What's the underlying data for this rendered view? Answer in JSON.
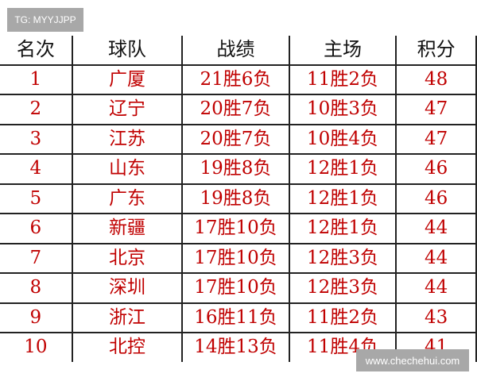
{
  "watermarks": {
    "top_left": "TG: MYYJJPP",
    "bottom_right": "www.chechehui.com"
  },
  "table": {
    "headers": [
      "名次",
      "球队",
      "战绩",
      "主场",
      "积分"
    ],
    "rows": [
      [
        "1",
        "广厦",
        "21胜6负",
        "11胜2负",
        "48"
      ],
      [
        "2",
        "辽宁",
        "20胜7负",
        "10胜3负",
        "47"
      ],
      [
        "3",
        "江苏",
        "20胜7负",
        "10胜4负",
        "47"
      ],
      [
        "4",
        "山东",
        "19胜8负",
        "12胜1负",
        "46"
      ],
      [
        "5",
        "广东",
        "19胜8负",
        "12胜1负",
        "46"
      ],
      [
        "6",
        "新疆",
        "17胜10负",
        "12胜1负",
        "44"
      ],
      [
        "7",
        "北京",
        "17胜10负",
        "12胜3负",
        "44"
      ],
      [
        "8",
        "深圳",
        "17胜10负",
        "12胜3负",
        "44"
      ],
      [
        "9",
        "浙江",
        "16胜11负",
        "11胜2负",
        "43"
      ],
      [
        "10",
        "北控",
        "14胜13负",
        "11胜4负",
        "41"
      ]
    ]
  },
  "colors": {
    "value_text": "#c00000",
    "header_text": "#111111",
    "watermark_bg": "#a8a8a8"
  }
}
